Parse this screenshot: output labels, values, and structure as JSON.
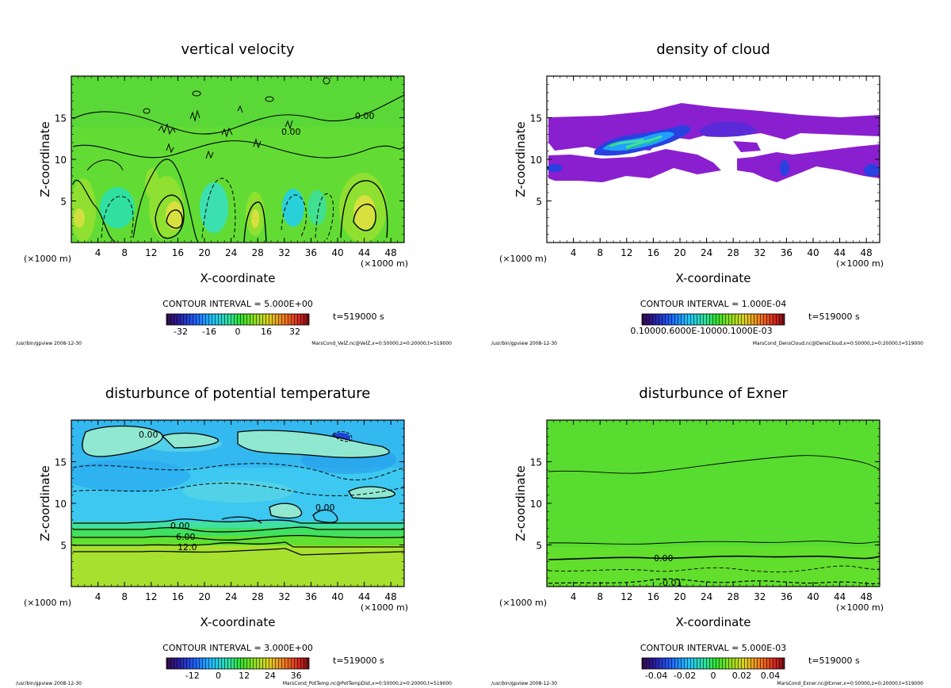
{
  "chart_data": [
    {
      "type": "heatmap",
      "title": "vertical velocity",
      "xlabel": "X-coordinate",
      "ylabel": "Z-coordinate",
      "x_unit": "(×1000 m)",
      "y_unit": "(×1000 m)",
      "x_ticks": [
        "4",
        "8",
        "12",
        "16",
        "20",
        "24",
        "28",
        "32",
        "36",
        "40",
        "44",
        "48"
      ],
      "y_ticks": [
        "5",
        "10",
        "15"
      ],
      "xlim": [
        0,
        50
      ],
      "ylim": [
        0,
        20
      ],
      "contour_interval": "CONTOUR INTERVAL = 5.000E+00",
      "contour_labels": [
        "0.00",
        "0.00"
      ],
      "colorbar_ticks": [
        "-32",
        "-16",
        "0",
        "16",
        "32"
      ],
      "colorbar_range": [
        -40,
        40
      ],
      "colorbar_palette": "rainbow",
      "time": "t=519000 s",
      "footer_left": "/usr/bin/gpview  2008-12-30",
      "footer_right": "MarsCond_VelZ.nc@VelZ,x=0:50000,z=0:20000,t=519000"
    },
    {
      "type": "heatmap",
      "title": "density of cloud",
      "xlabel": "X-coordinate",
      "ylabel": "Z-coordinate",
      "x_unit": "(×1000 m)",
      "y_unit": "(×1000 m)",
      "x_ticks": [
        "4",
        "8",
        "12",
        "16",
        "20",
        "24",
        "28",
        "32",
        "36",
        "40",
        "44",
        "48"
      ],
      "y_ticks": [
        "5",
        "10",
        "15"
      ],
      "xlim": [
        0,
        50
      ],
      "ylim": [
        0,
        20
      ],
      "contour_interval": "CONTOUR INTERVAL = 1.000E-04",
      "colorbar_ticks_text": "0.10000.6000E-10000.1000E-03",
      "colorbar_range": [
        0,
        0.001
      ],
      "colorbar_palette": "rainbow",
      "time": "t=519000 s",
      "footer_left": "/usr/bin/gpview  2008-12-30",
      "footer_right": "MarsCond_DensCloud.nc@DensCloud,x=0:50000,z=0:20000,t=519000"
    },
    {
      "type": "heatmap",
      "title": "disturbunce of potential temperature",
      "xlabel": "X-coordinate",
      "ylabel": "Z-coordinate",
      "x_unit": "(×1000 m)",
      "y_unit": "(×1000 m)",
      "x_ticks": [
        "4",
        "8",
        "12",
        "16",
        "20",
        "24",
        "28",
        "32",
        "36",
        "40",
        "44",
        "48"
      ],
      "y_ticks": [
        "5",
        "10",
        "15"
      ],
      "xlim": [
        0,
        50
      ],
      "ylim": [
        0,
        20
      ],
      "contour_interval": "CONTOUR INTERVAL = 3.000E+00",
      "contour_labels": [
        "0.00",
        "0.00",
        "0.00",
        "6.00",
        "12.0"
      ],
      "colorbar_ticks": [
        "-12",
        "0",
        "12",
        "24",
        "36"
      ],
      "colorbar_range": [
        -24,
        42
      ],
      "colorbar_palette": "rainbow",
      "time": "t=519000 s",
      "footer_left": "/usr/bin/gpview  2008-12-30",
      "footer_right": "MarsCond_PotTemp.nc@PotTempDist,x=0:50000,z=0:20000,t=519000"
    },
    {
      "type": "heatmap",
      "title": "disturbunce of Exner",
      "xlabel": "X-coordinate",
      "ylabel": "Z-coordinate",
      "x_unit": "(×1000 m)",
      "y_unit": "(×1000 m)",
      "x_ticks": [
        "4",
        "8",
        "12",
        "16",
        "20",
        "24",
        "28",
        "32",
        "36",
        "40",
        "44",
        "48"
      ],
      "y_ticks": [
        "5",
        "10",
        "15"
      ],
      "xlim": [
        0,
        50
      ],
      "ylim": [
        0,
        20
      ],
      "contour_interval": "CONTOUR INTERVAL = 5.000E-03",
      "contour_labels": [
        "0.00",
        "-0.01"
      ],
      "colorbar_ticks": [
        "-0.04",
        "-0.02",
        "0",
        "0.02",
        "0.04"
      ],
      "colorbar_range": [
        -0.05,
        0.05
      ],
      "colorbar_palette": "rainbow",
      "time": "t=519000 s",
      "footer_left": "/usr/bin/gpview  2008-12-30",
      "footer_right": "MarsCond_Exner.nc@Exner,x=0:50000,z=0:20000,t=519000"
    }
  ]
}
